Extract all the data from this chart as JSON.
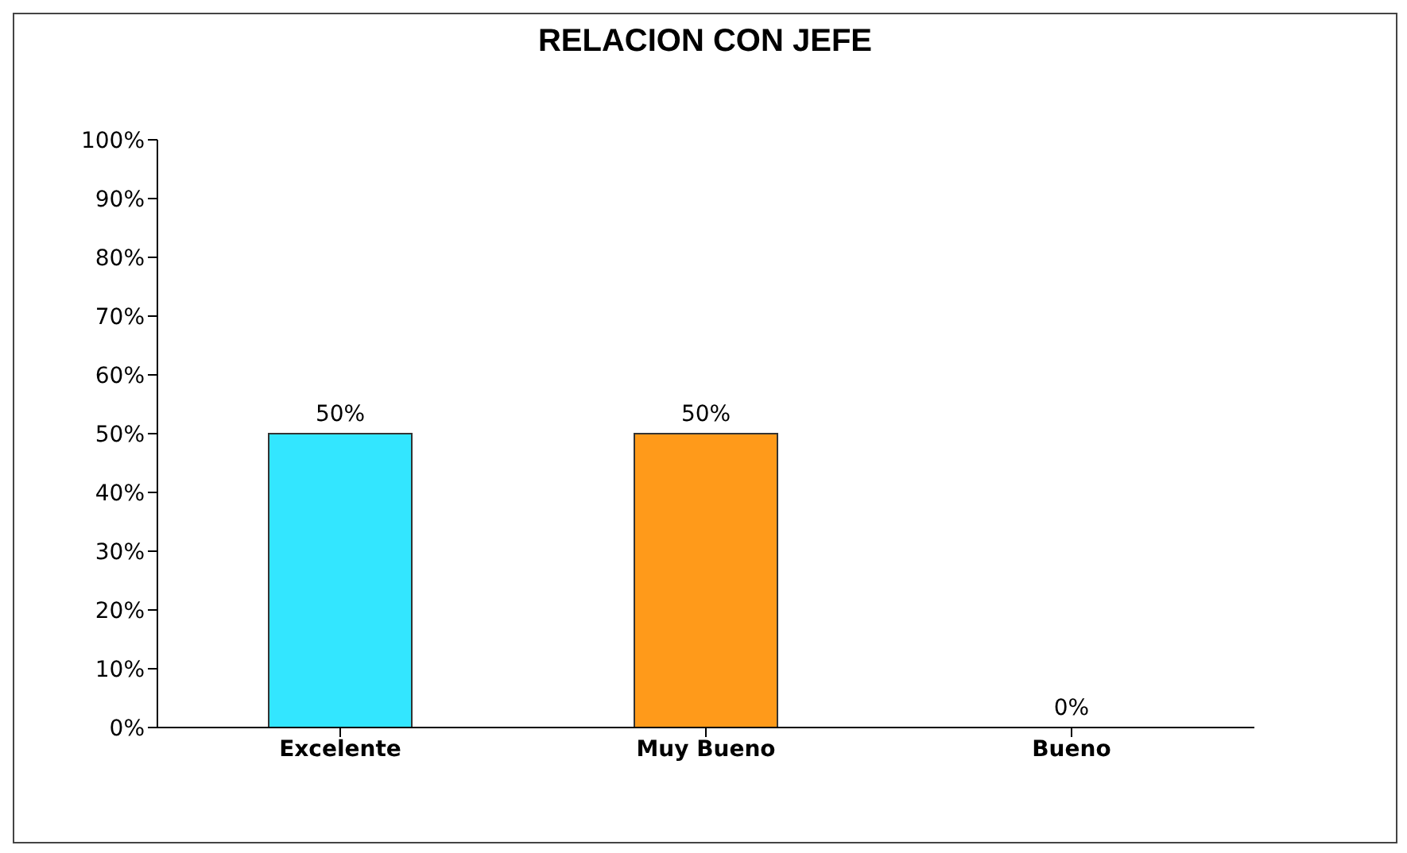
{
  "chart_data": {
    "type": "bar",
    "title": "RELACION CON JEFE",
    "categories": [
      "Excelente",
      "Muy Bueno",
      "Bueno"
    ],
    "values": [
      50,
      50,
      0
    ],
    "colors": [
      "#33e6ff",
      "#ff9a1a",
      "#993399"
    ],
    "value_labels": [
      "50%",
      "50%",
      "0%"
    ],
    "ylim": [
      0,
      100
    ],
    "yticks": [
      {
        "value": 0,
        "label": "0%"
      },
      {
        "value": 10,
        "label": "10%"
      },
      {
        "value": 20,
        "label": "20%"
      },
      {
        "value": 30,
        "label": "30%"
      },
      {
        "value": 40,
        "label": "40%"
      },
      {
        "value": 50,
        "label": "50%"
      },
      {
        "value": 60,
        "label": "60%"
      },
      {
        "value": 70,
        "label": "70%"
      },
      {
        "value": 80,
        "label": "80%"
      },
      {
        "value": 90,
        "label": "90%"
      },
      {
        "value": 100,
        "label": "100%"
      }
    ],
    "grid": false,
    "legend": false
  }
}
